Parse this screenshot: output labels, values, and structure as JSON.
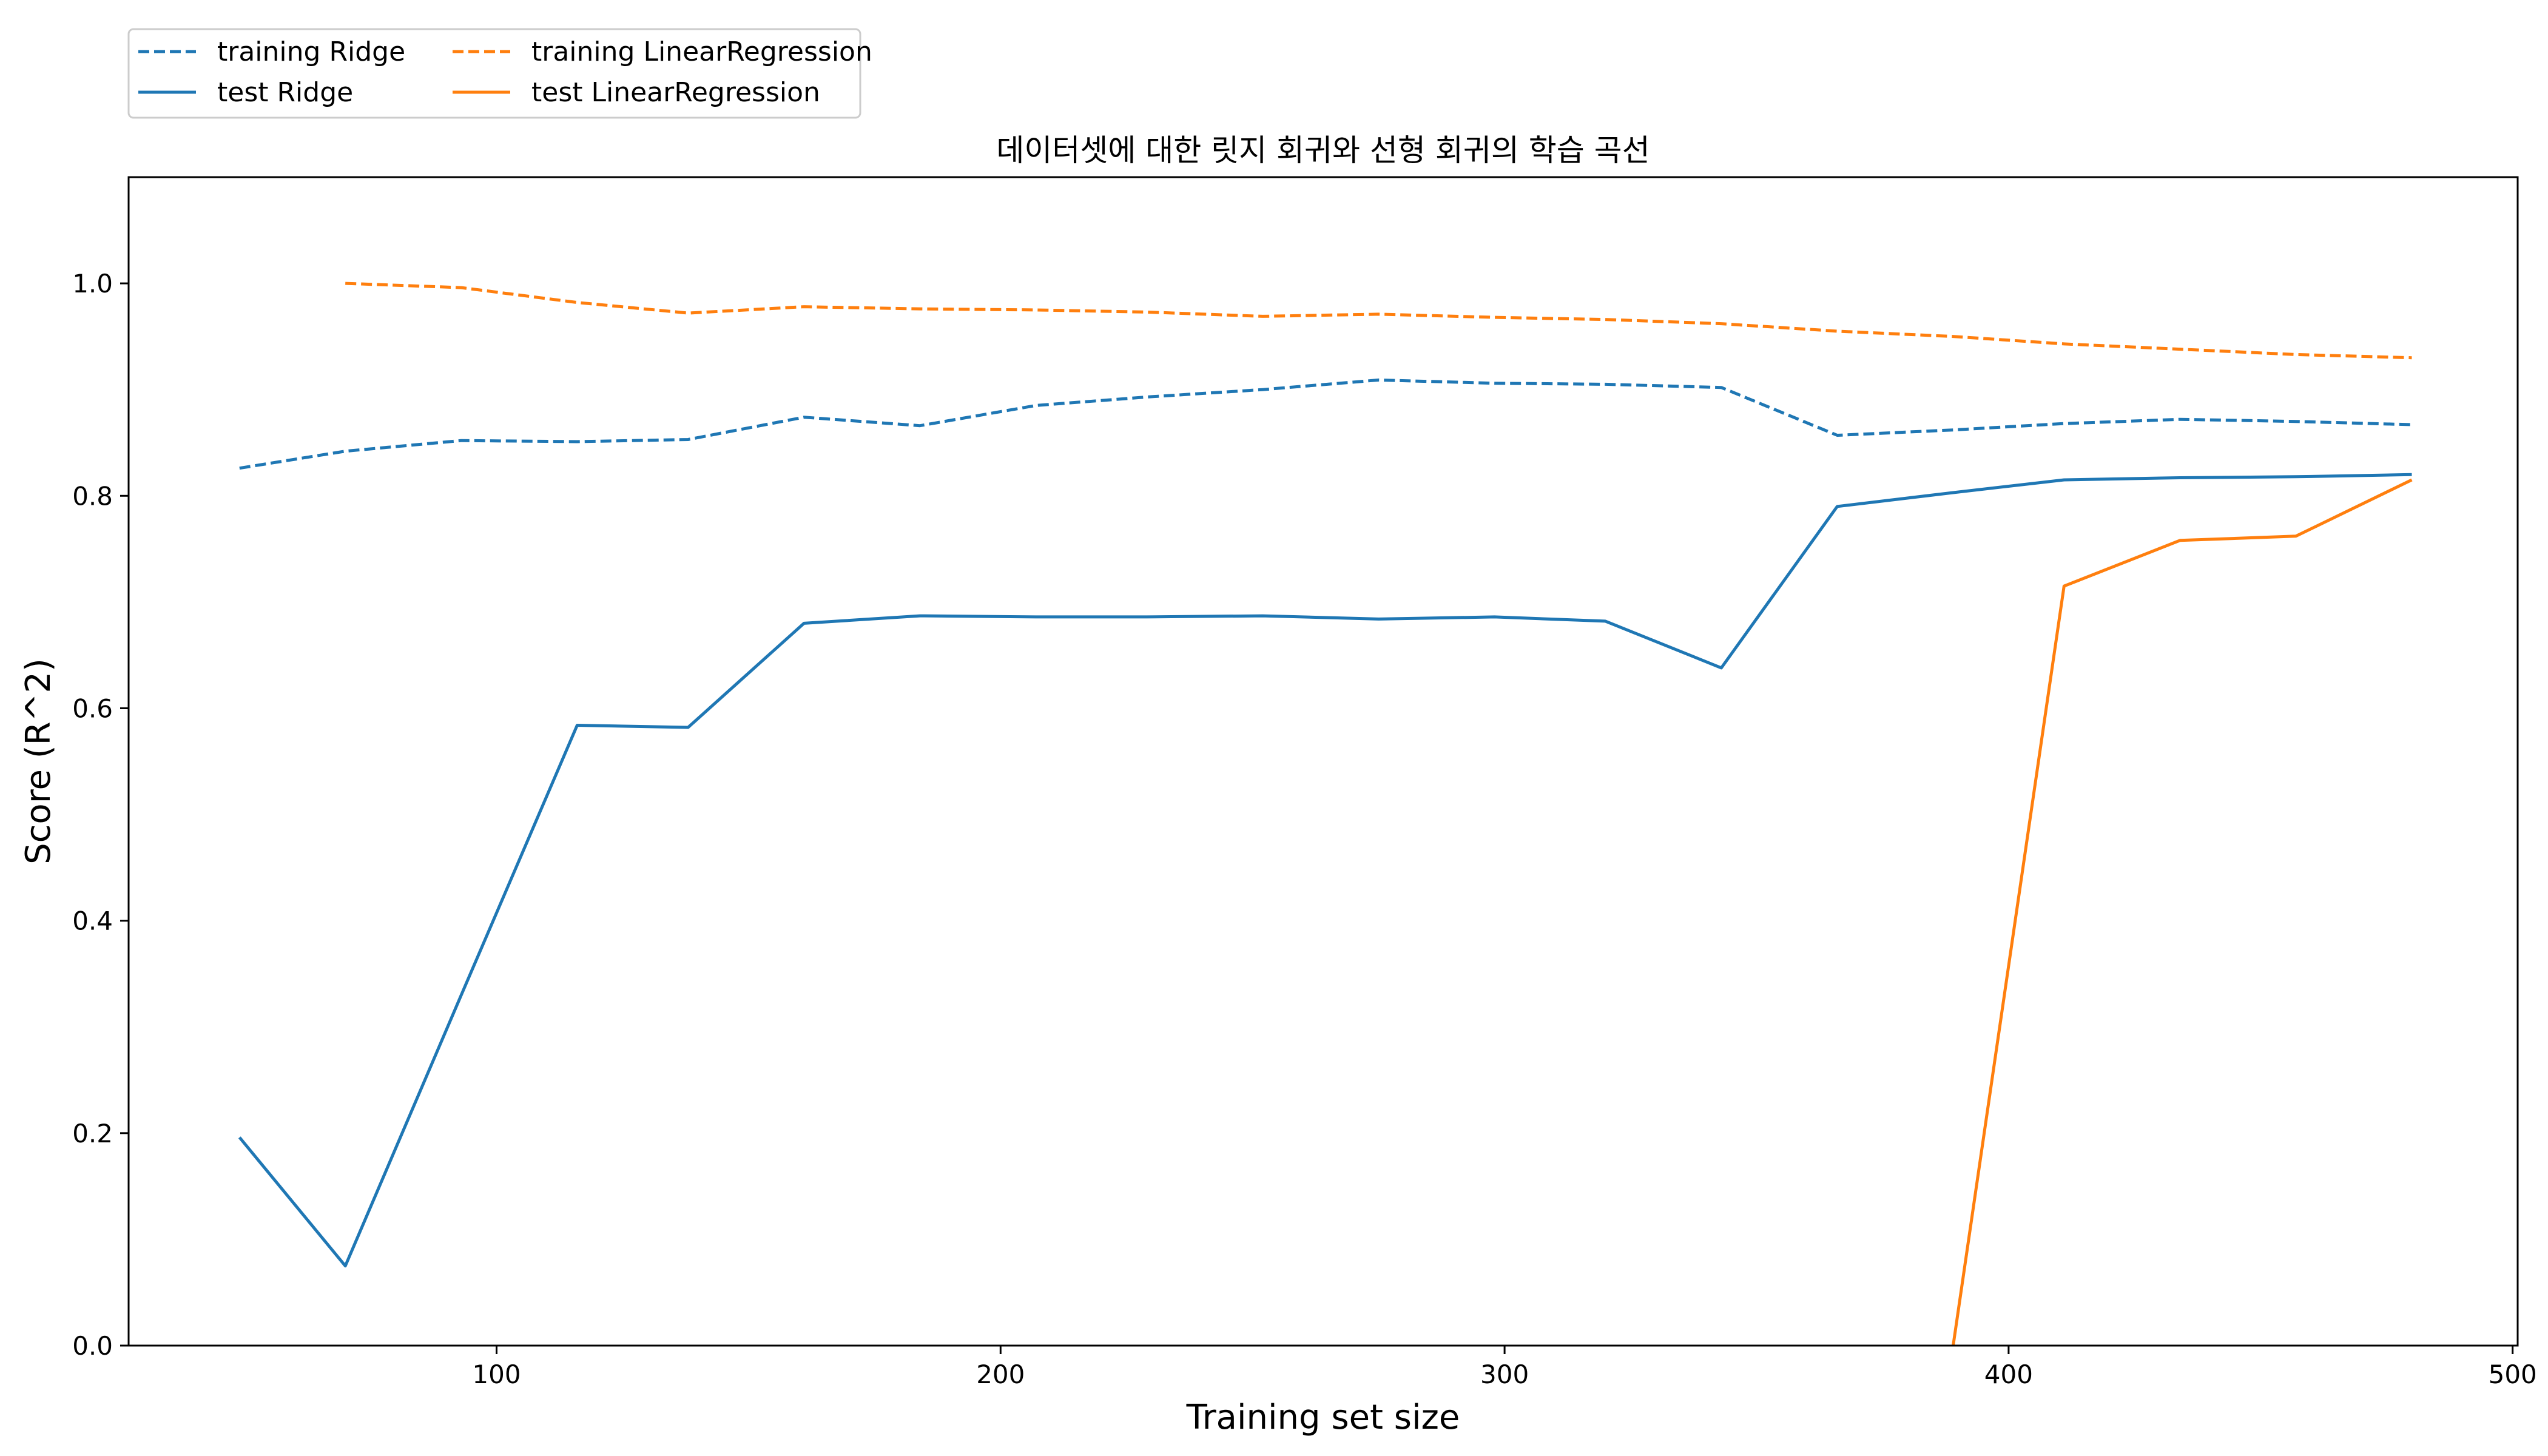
{
  "chart_data": {
    "type": "line",
    "title": "데이터셋에 대한 릿지 회귀와 선형 회귀의 학습 곡선",
    "xlabel": "Training set size",
    "ylabel": "Score (R^2)",
    "xlim": [
      27,
      501
    ],
    "ylim": [
      0.0,
      1.1
    ],
    "xticks": [
      100,
      200,
      300,
      400,
      500
    ],
    "xtick_labels": [
      "100",
      "200",
      "300",
      "400",
      "500"
    ],
    "yticks": [
      0.0,
      0.2,
      0.4,
      0.6,
      0.8,
      1.0
    ],
    "ytick_labels": [
      "0.0",
      "0.2",
      "0.4",
      "0.6",
      "0.8",
      "1.0"
    ],
    "grid": false,
    "legend": {
      "placement": "upper-left, above plot, 2 columns",
      "columns": [
        [
          "training Ridge",
          "test Ridge"
        ],
        [
          "training LinearRegression",
          "test LinearRegression"
        ]
      ]
    },
    "series": [
      {
        "name": "training Ridge",
        "color": "#1f77b4",
        "style": "dashed",
        "x": [
          49,
          70,
          93,
          116,
          138,
          161,
          184,
          207,
          229,
          252,
          275,
          298,
          320,
          343,
          366,
          389,
          411,
          434,
          457,
          480
        ],
        "y": [
          0.826,
          0.842,
          0.852,
          0.851,
          0.853,
          0.874,
          0.866,
          0.885,
          0.893,
          0.9,
          0.909,
          0.906,
          0.905,
          0.902,
          0.857,
          0.862,
          0.868,
          0.872,
          0.87,
          0.867
        ]
      },
      {
        "name": "test Ridge",
        "color": "#1f77b4",
        "style": "solid",
        "x": [
          49,
          70,
          93,
          116,
          138,
          161,
          184,
          207,
          229,
          252,
          275,
          298,
          320,
          343,
          366,
          389,
          411,
          434,
          457,
          480
        ],
        "y": [
          0.196,
          0.075,
          0.33,
          0.584,
          0.582,
          0.68,
          0.687,
          0.686,
          0.686,
          0.687,
          0.684,
          0.686,
          0.682,
          0.638,
          0.79,
          0.803,
          0.815,
          0.817,
          0.818,
          0.82
        ]
      },
      {
        "name": "training LinearRegression",
        "color": "#ff7f0e",
        "style": "dashed",
        "x": [
          70,
          93,
          116,
          138,
          161,
          184,
          207,
          229,
          252,
          275,
          298,
          320,
          343,
          366,
          389,
          411,
          434,
          457,
          480
        ],
        "y": [
          1.0,
          0.996,
          0.982,
          0.972,
          0.978,
          0.976,
          0.975,
          0.973,
          0.969,
          0.971,
          0.968,
          0.966,
          0.962,
          0.955,
          0.95,
          0.943,
          0.938,
          0.933,
          0.93
        ]
      },
      {
        "name": "test LinearRegression",
        "color": "#ff7f0e",
        "style": "solid",
        "x": [
          389,
          411,
          434,
          457,
          480
        ],
        "y": [
          0.0,
          0.715,
          0.758,
          0.762,
          0.815
        ],
        "note_clipped_below_axis": true
      }
    ]
  }
}
